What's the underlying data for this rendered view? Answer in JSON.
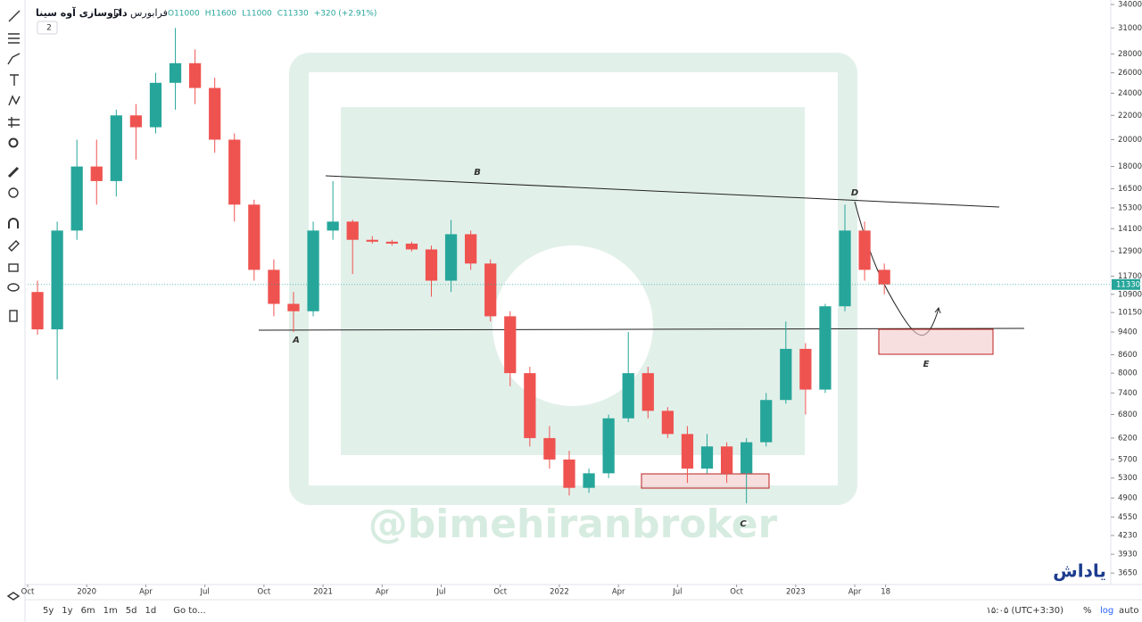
{
  "chart_data": {
    "type": "candlestick",
    "symbol": "داروسازی آوه سینا",
    "interval": "D",
    "exchange": "فرابورس",
    "ohlc_labels": [
      "O11000",
      "H11600",
      "L11000",
      "C11330",
      "+320 (+2.91%)"
    ],
    "indicator_count": "2",
    "x": [
      "2019-10",
      "2019-11",
      "2019-12",
      "2020-01",
      "2020-02",
      "2020-03",
      "2020-04",
      "2020-05",
      "2020-06",
      "2020-07",
      "2020-08",
      "2020-09",
      "2020-10",
      "2020-11",
      "2020-12",
      "2021-01",
      "2021-02",
      "2021-03",
      "2021-04",
      "2021-05",
      "2021-06",
      "2021-07",
      "2021-08",
      "2021-09",
      "2021-10",
      "2021-11",
      "2021-12",
      "2022-01",
      "2022-02",
      "2022-03",
      "2022-04",
      "2022-05",
      "2022-06",
      "2022-07",
      "2022-08",
      "2022-09",
      "2022-10",
      "2022-11",
      "2022-12",
      "2023-01",
      "2023-02",
      "2023-03",
      "2023-04",
      "2023-05"
    ],
    "opens": [
      11000,
      9500,
      14000,
      18000,
      17000,
      22000,
      21000,
      25000,
      27000,
      24500,
      20000,
      15500,
      12000,
      10500,
      10200,
      14000,
      14500,
      13500,
      13400,
      13300,
      13000,
      11500,
      13800,
      12300,
      10000,
      8000,
      6200,
      5700,
      5100,
      5400,
      6700,
      8000,
      6900,
      6300,
      5500,
      6000,
      5400,
      6100,
      7200,
      8800,
      7500,
      10400,
      14000,
      12000
    ],
    "highs": [
      11500,
      14500,
      20000,
      20000,
      22500,
      23000,
      26000,
      31000,
      28500,
      25500,
      20500,
      15800,
      12500,
      11000,
      14500,
      17000,
      14600,
      13700,
      13500,
      13400,
      13200,
      14600,
      14000,
      12500,
      10200,
      8200,
      6500,
      5900,
      5500,
      6800,
      9400,
      8200,
      7000,
      6500,
      6300,
      6100,
      6200,
      7400,
      9800,
      9000,
      10500,
      15500,
      14500,
      12300
    ],
    "lows": [
      9300,
      7800,
      13500,
      15500,
      16000,
      18500,
      20500,
      22500,
      23000,
      19000,
      14500,
      11500,
      10000,
      9400,
      10000,
      13500,
      11800,
      13300,
      13200,
      12900,
      10800,
      11000,
      12000,
      9800,
      7600,
      6000,
      5500,
      4950,
      5000,
      5300,
      6600,
      6700,
      6200,
      5200,
      5400,
      5200,
      4800,
      6000,
      7100,
      6800,
      7400,
      10200,
      11500,
      10900
    ],
    "closes": [
      9500,
      14000,
      18000,
      17000,
      22000,
      21000,
      25000,
      27000,
      24500,
      20000,
      15500,
      12000,
      10500,
      10200,
      14000,
      14500,
      13500,
      13400,
      13300,
      13000,
      11500,
      13800,
      12300,
      10000,
      8000,
      6200,
      5700,
      5100,
      5400,
      6700,
      8000,
      6900,
      6300,
      5500,
      6000,
      5400,
      6100,
      7200,
      8800,
      7500,
      10400,
      14000,
      12000,
      11330
    ],
    "up_color": "#26a69a",
    "down_color": "#ef5350",
    "last_price": 11330,
    "log_scale": true,
    "ylim": [
      3490,
      34600
    ],
    "yticks": [
      3650,
      3930,
      4230,
      4550,
      4900,
      5300,
      5700,
      6200,
      6800,
      7400,
      8000,
      8600,
      9400,
      10150,
      10900,
      11700,
      12900,
      14100,
      15300,
      16500,
      18000,
      20000,
      22000,
      24000,
      26000,
      28000,
      31000,
      34000
    ],
    "xlim": [
      "2019-10",
      "2024-05"
    ],
    "xticks": [
      {
        "value": "2019-10",
        "label": "Oct"
      },
      {
        "value": "2020-01",
        "label": "2020"
      },
      {
        "value": "2020-04",
        "label": "Apr"
      },
      {
        "value": "2020-07",
        "label": "Jul"
      },
      {
        "value": "2020-10",
        "label": "Oct"
      },
      {
        "value": "2021-01",
        "label": "2021"
      },
      {
        "value": "2021-04",
        "label": "Apr"
      },
      {
        "value": "2021-07",
        "label": "Jul"
      },
      {
        "value": "2021-10",
        "label": "Oct"
      },
      {
        "value": "2022-01",
        "label": "2022"
      },
      {
        "value": "2022-04",
        "label": "Apr"
      },
      {
        "value": "2022-07",
        "label": "Jul"
      },
      {
        "value": "2022-10",
        "label": "Oct"
      },
      {
        "value": "2023-01",
        "label": "2023"
      },
      {
        "value": "2023-04",
        "label": "Apr"
      },
      {
        "value": "2023-05-18",
        "label": "18"
      }
    ],
    "annotations": [
      "A",
      "B",
      "C",
      "D",
      "E"
    ],
    "grid": false
  },
  "ui": {
    "ranges": [
      "5y",
      "1y",
      "6m",
      "1m",
      "5d",
      "1d"
    ],
    "goto": "Go to...",
    "clock": "۱۵:۰۵ (UTC+3:30)",
    "percent": "%",
    "log": "log",
    "auto": "auto",
    "watermark": "@bimehiranbroker",
    "logo": "یاداش"
  }
}
